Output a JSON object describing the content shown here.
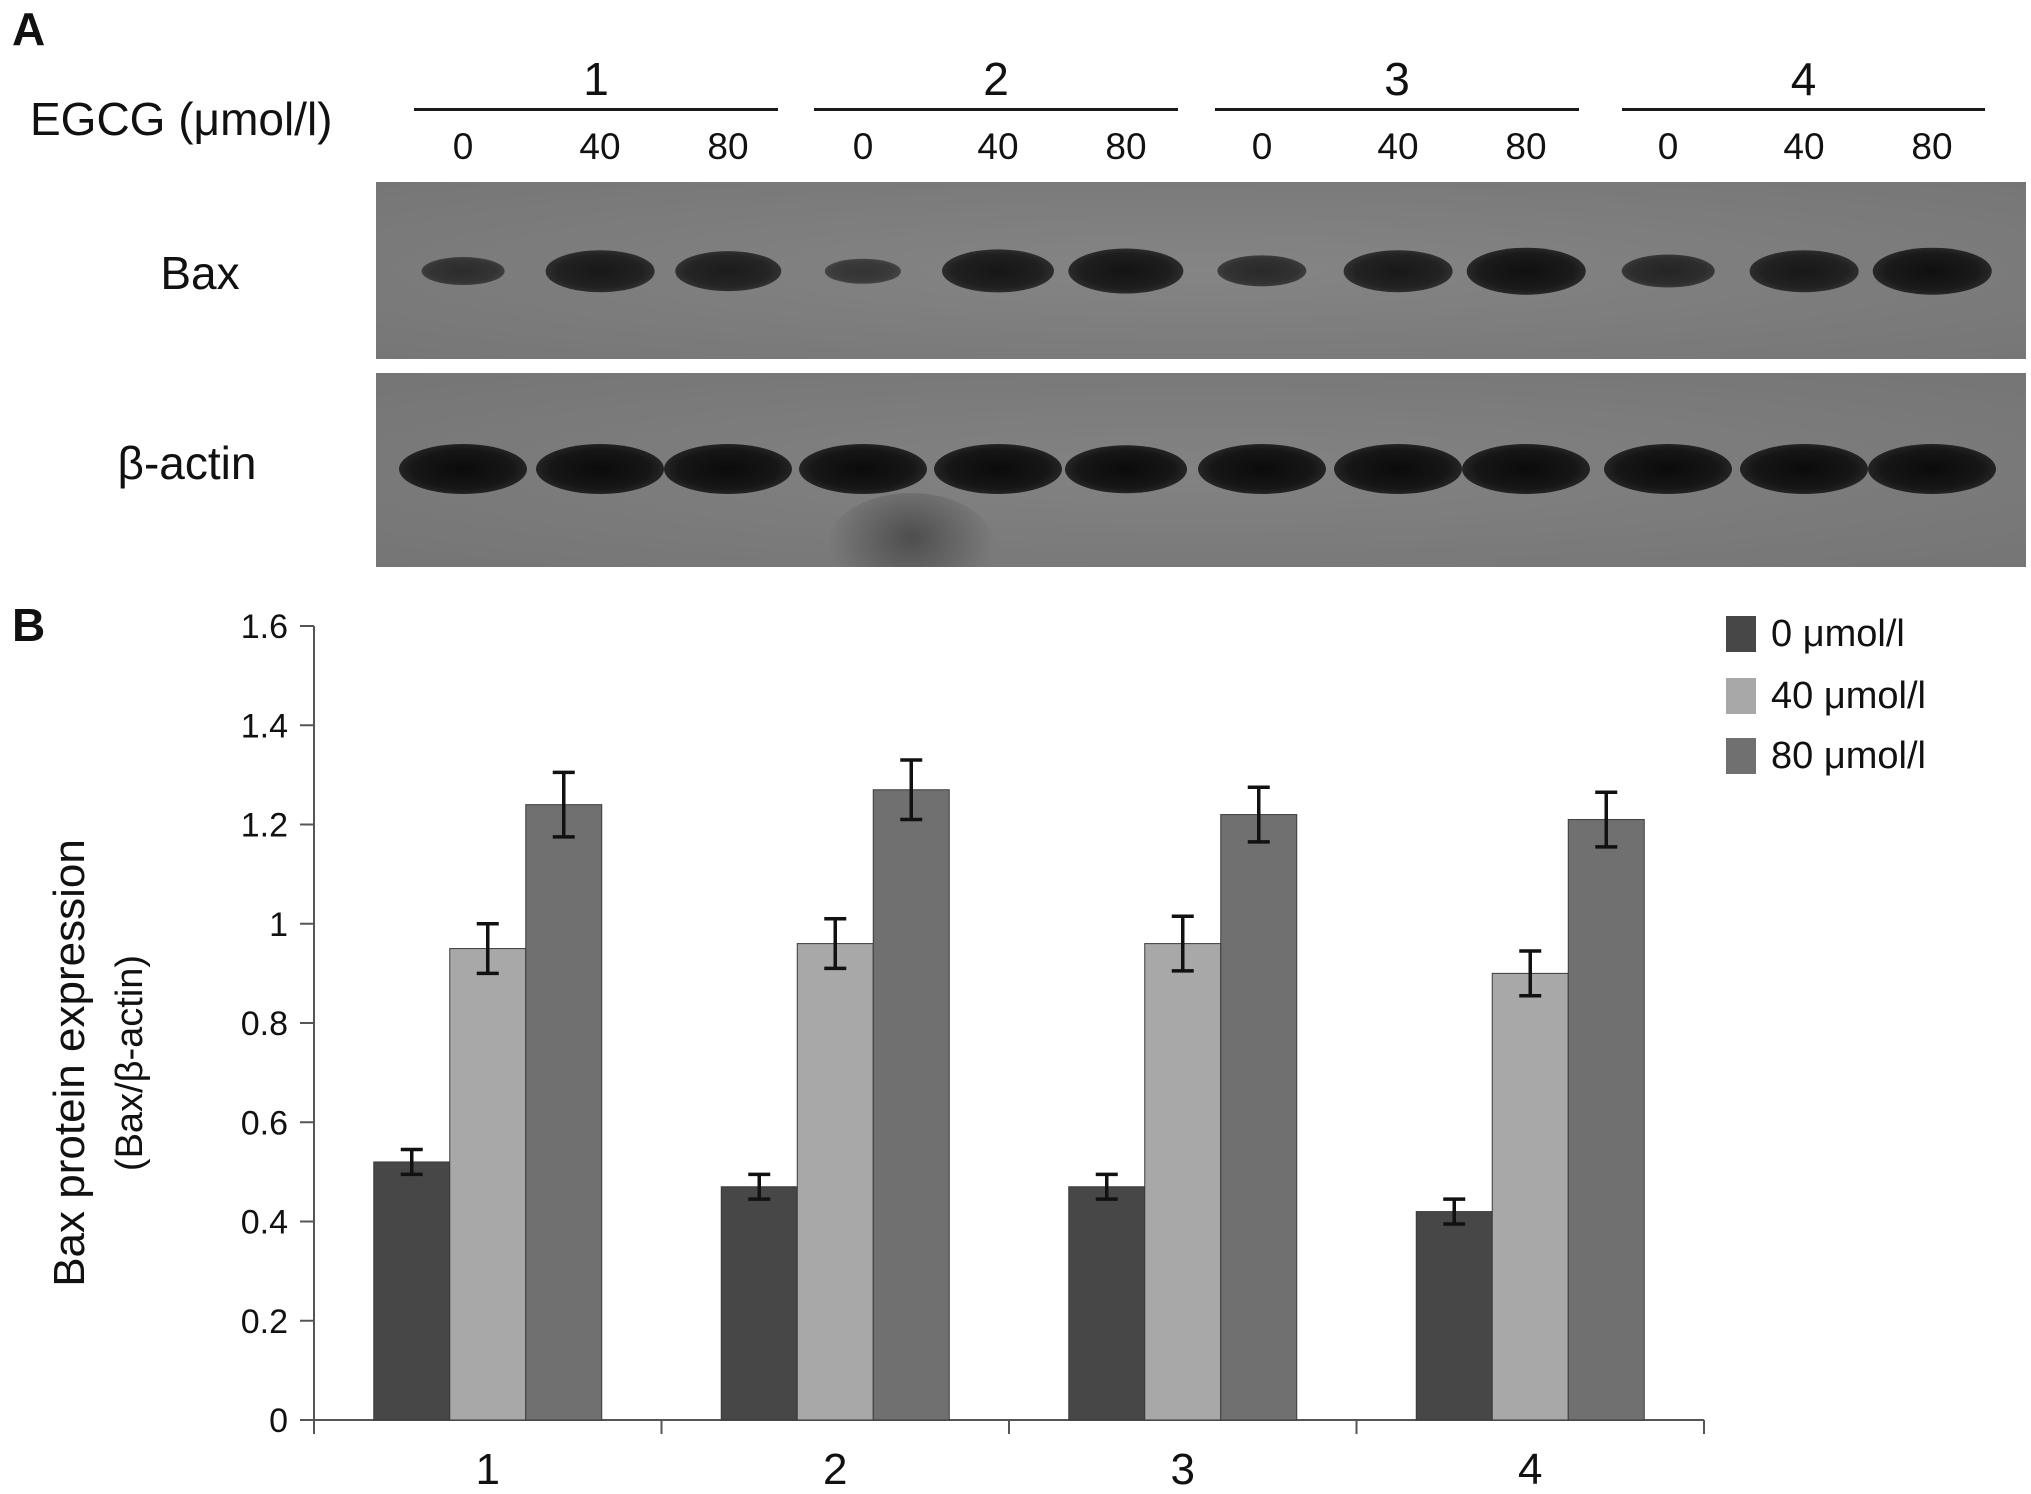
{
  "panel_a": {
    "letter": "A",
    "treatment_label": "EGCG (μmol/l)",
    "groups": [
      "1",
      "2",
      "3",
      "4"
    ],
    "doses": [
      "0",
      "40",
      "80"
    ],
    "rows": [
      {
        "label": "Bax",
        "band_intensity": [
          0.35,
          0.75,
          0.7,
          0.25,
          0.8,
          0.85,
          0.45,
          0.75,
          0.9,
          0.5,
          0.75,
          0.9
        ]
      },
      {
        "label": "β-actin",
        "band_intensity": [
          1,
          1,
          1,
          1,
          1,
          0.95,
          1,
          1,
          1,
          1,
          1,
          1
        ]
      }
    ]
  },
  "panel_b": {
    "letter": "B"
  },
  "colors": {
    "series_0": "#474747",
    "series_40": "#a8a8a8",
    "series_80": "#707070",
    "error_bar": "#111111",
    "axis": "#555555"
  },
  "chart_data": {
    "type": "bar",
    "categories": [
      "1",
      "2",
      "3",
      "4"
    ],
    "series": [
      {
        "name": "0 μmol/l",
        "values": [
          0.52,
          0.47,
          0.47,
          0.42
        ],
        "errors": [
          0.025,
          0.025,
          0.025,
          0.025
        ]
      },
      {
        "name": "40 μmol/l",
        "values": [
          0.95,
          0.96,
          0.96,
          0.9
        ],
        "errors": [
          0.05,
          0.05,
          0.055,
          0.045
        ]
      },
      {
        "name": "80 μmol/l",
        "values": [
          1.24,
          1.27,
          1.22,
          1.21
        ],
        "errors": [
          0.065,
          0.06,
          0.055,
          0.055
        ]
      }
    ],
    "title": "",
    "xlabel": "",
    "ylabel": "Bax protein expression",
    "ylabel_sub": "(Bax/β-actin)",
    "ylim": [
      0,
      1.6
    ],
    "yticks": [
      "0",
      "0.2",
      "0.4",
      "0.6",
      "0.8",
      "1",
      "1.2",
      "1.4",
      "1.6"
    ],
    "grid": false,
    "legend": "top-right"
  }
}
